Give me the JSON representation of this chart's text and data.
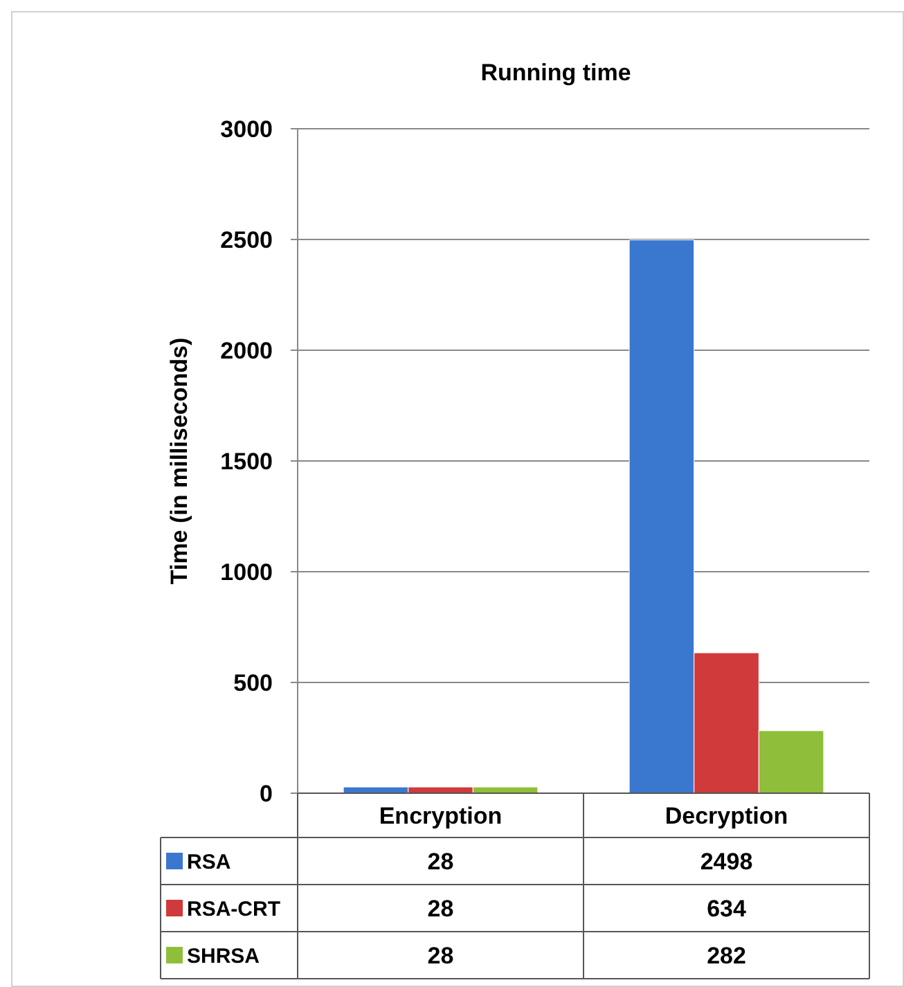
{
  "chart_data": {
    "type": "bar",
    "title": "Running time",
    "ylabel": "Time (in milliseconds)",
    "categories": [
      "Encryption",
      "Decryption"
    ],
    "series": [
      {
        "name": "RSA",
        "color": "#3a78d0",
        "values": [
          28,
          2498
        ]
      },
      {
        "name": "RSA-CRT",
        "color": "#d03a3a",
        "values": [
          28,
          634
        ]
      },
      {
        "name": "SHRSA",
        "color": "#8fbf3a",
        "values": [
          28,
          282
        ]
      }
    ],
    "ylim": [
      0,
      3000
    ],
    "yticks": [
      0,
      500,
      1000,
      1500,
      2000,
      2500,
      3000
    ],
    "grid": "y",
    "legend": "bottom",
    "data_labels": true
  }
}
